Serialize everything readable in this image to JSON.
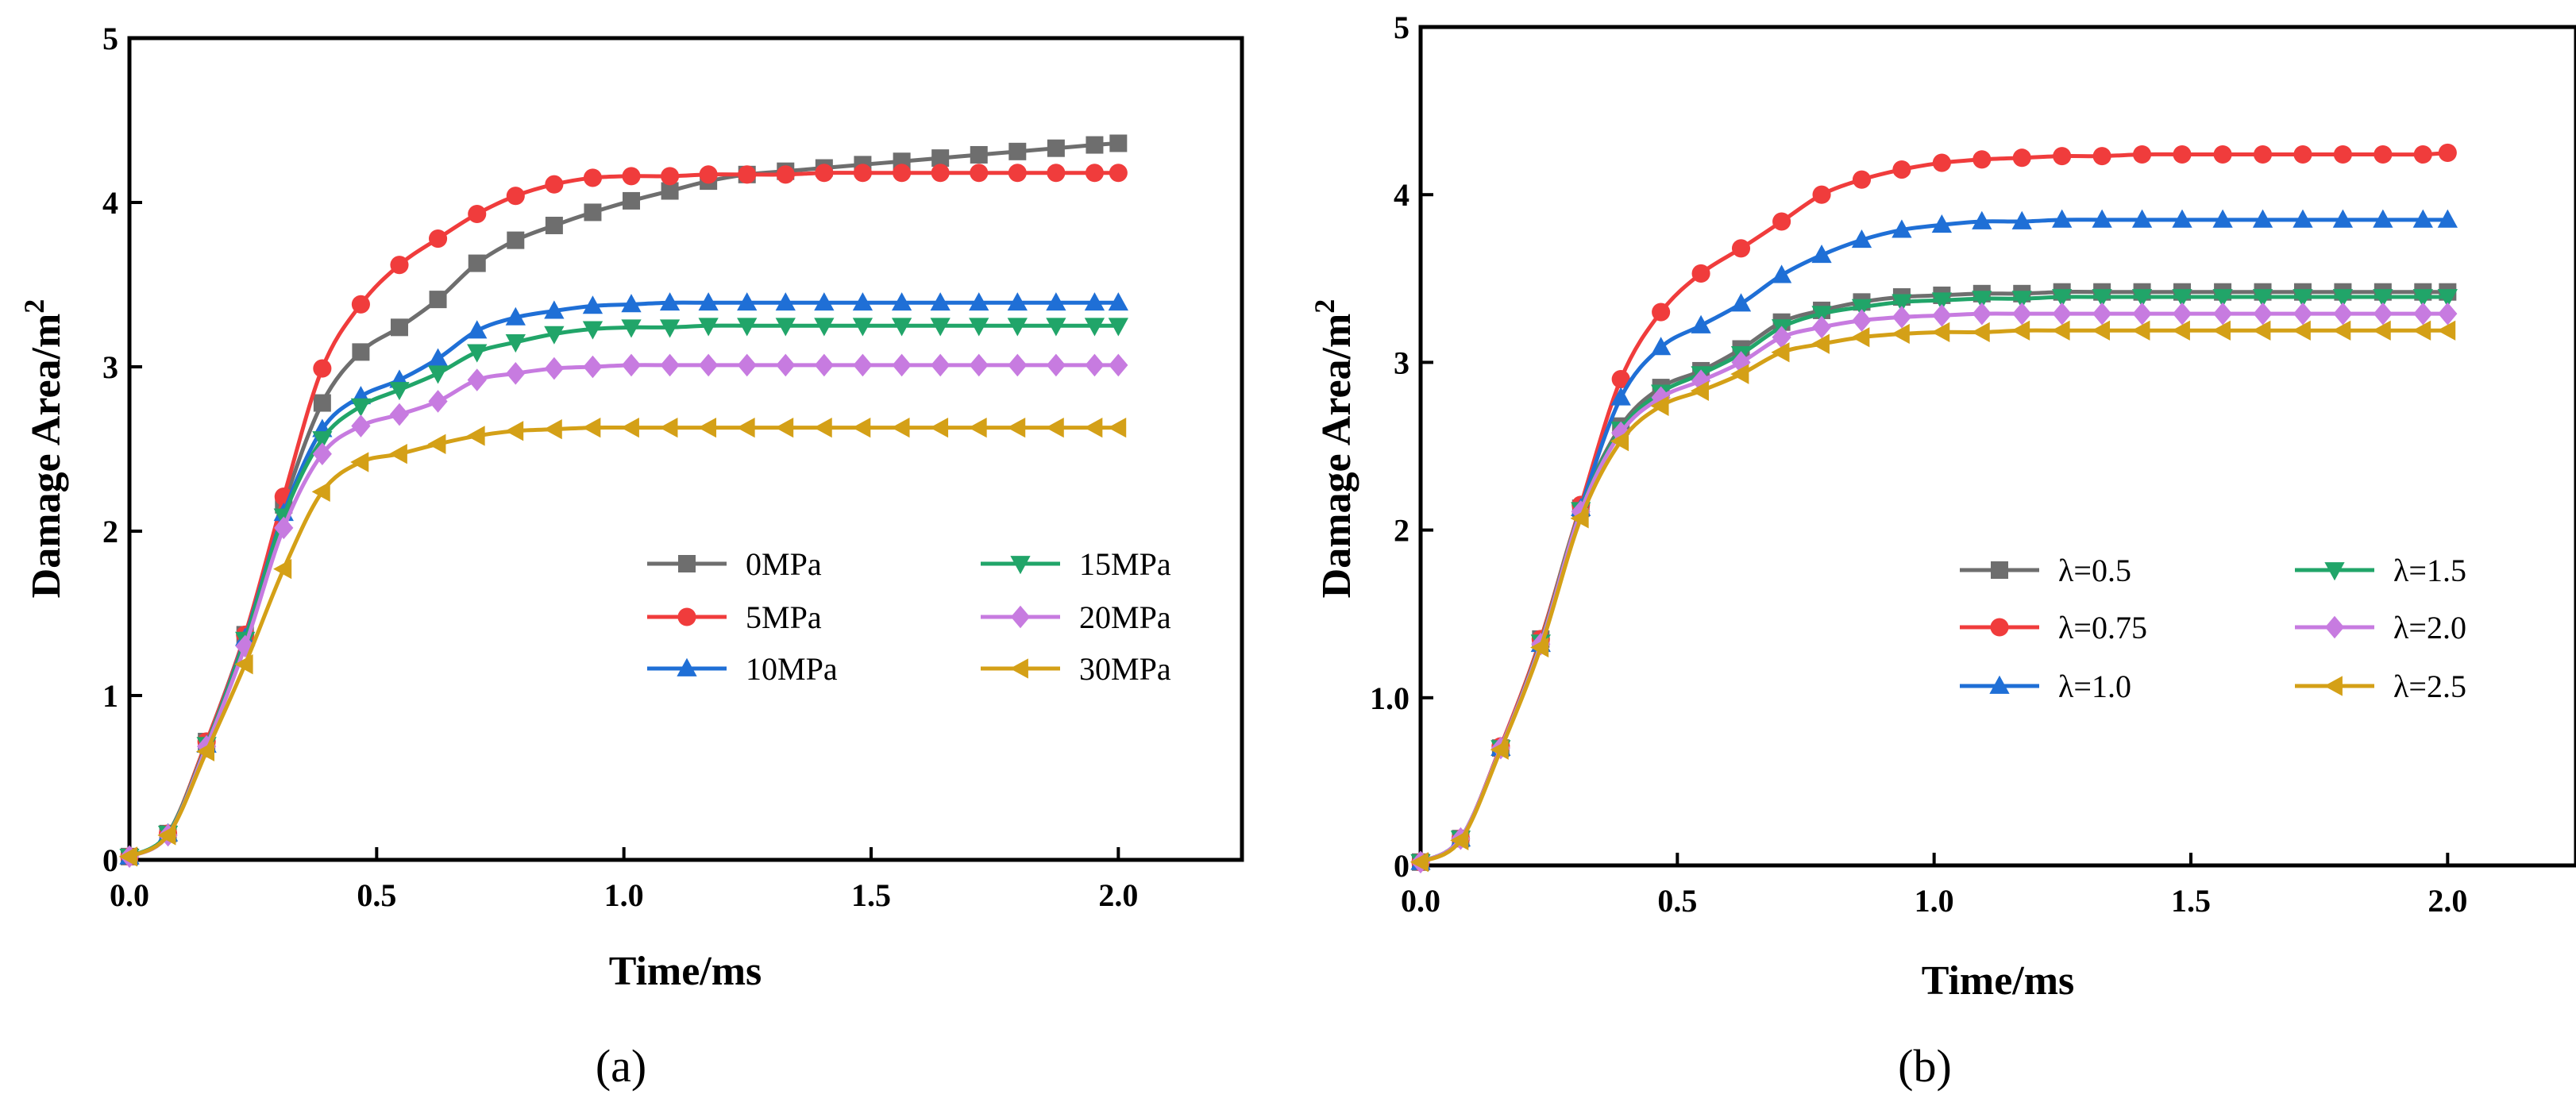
{
  "chart_data": [
    {
      "type": "line",
      "panel_label": "(a)",
      "xlabel": "Time/ms",
      "ylabel_base": "Damage Area/m",
      "ylabel_sup": "2",
      "xlim": [
        0,
        2.25
      ],
      "ylim": [
        0,
        5
      ],
      "xticks": [
        0.0,
        0.5,
        1.0,
        1.5,
        2.0
      ],
      "xtick_labels": [
        "0.0",
        "0.5",
        "1.0",
        "1.5",
        "2.0"
      ],
      "yticks": [
        0,
        1,
        2,
        3,
        4,
        5
      ],
      "ytick_labels": [
        "0",
        "1",
        "2",
        "3",
        "4",
        "5"
      ],
      "legend_position": "center-right",
      "series": [
        {
          "name": "0MPa",
          "color": "#6e6e6e",
          "marker": "square",
          "x": [
            0,
            0.078,
            0.156,
            0.234,
            0.312,
            0.39,
            0.468,
            0.546,
            0.624,
            0.703,
            0.781,
            0.859,
            0.937,
            1.015,
            1.093,
            1.171,
            1.249,
            1.327,
            1.405,
            1.483,
            1.562,
            1.64,
            1.718,
            1.796,
            1.874,
            1.952,
            2.0
          ],
          "y": [
            0.02,
            0.16,
            0.72,
            1.37,
            2.16,
            2.78,
            3.09,
            3.24,
            3.41,
            3.63,
            3.77,
            3.86,
            3.94,
            4.01,
            4.07,
            4.13,
            4.17,
            4.19,
            4.21,
            4.23,
            4.25,
            4.27,
            4.29,
            4.31,
            4.33,
            4.35,
            4.36
          ]
        },
        {
          "name": "5MPa",
          "color": "#f03c3c",
          "marker": "circle",
          "x": [
            0,
            0.078,
            0.156,
            0.234,
            0.312,
            0.39,
            0.468,
            0.546,
            0.624,
            0.703,
            0.781,
            0.859,
            0.937,
            1.015,
            1.093,
            1.171,
            1.249,
            1.327,
            1.405,
            1.483,
            1.562,
            1.64,
            1.718,
            1.796,
            1.874,
            1.952,
            2.0
          ],
          "y": [
            0.02,
            0.16,
            0.72,
            1.37,
            2.21,
            2.99,
            3.38,
            3.62,
            3.78,
            3.93,
            4.04,
            4.11,
            4.15,
            4.16,
            4.16,
            4.17,
            4.17,
            4.17,
            4.18,
            4.18,
            4.18,
            4.18,
            4.18,
            4.18,
            4.18,
            4.18,
            4.18
          ]
        },
        {
          "name": "10MPa",
          "color": "#1f6fd6",
          "marker": "triangle-up",
          "x": [
            0,
            0.078,
            0.156,
            0.234,
            0.312,
            0.39,
            0.468,
            0.546,
            0.624,
            0.703,
            0.781,
            0.859,
            0.937,
            1.015,
            1.093,
            1.171,
            1.249,
            1.327,
            1.405,
            1.483,
            1.562,
            1.64,
            1.718,
            1.796,
            1.874,
            1.952,
            2.0
          ],
          "y": [
            0.02,
            0.16,
            0.7,
            1.35,
            2.11,
            2.62,
            2.82,
            2.92,
            3.05,
            3.22,
            3.3,
            3.34,
            3.37,
            3.38,
            3.39,
            3.39,
            3.39,
            3.39,
            3.39,
            3.39,
            3.39,
            3.39,
            3.39,
            3.39,
            3.39,
            3.39,
            3.39
          ]
        },
        {
          "name": "15MPa",
          "color": "#21a569",
          "marker": "triangle-down",
          "x": [
            0,
            0.078,
            0.156,
            0.234,
            0.312,
            0.39,
            0.468,
            0.546,
            0.624,
            0.703,
            0.781,
            0.859,
            0.937,
            1.015,
            1.093,
            1.171,
            1.249,
            1.327,
            1.405,
            1.483,
            1.562,
            1.64,
            1.718,
            1.796,
            1.874,
            1.952,
            2.0
          ],
          "y": [
            0.02,
            0.16,
            0.7,
            1.34,
            2.09,
            2.56,
            2.76,
            2.86,
            2.96,
            3.09,
            3.15,
            3.2,
            3.23,
            3.24,
            3.24,
            3.25,
            3.25,
            3.25,
            3.25,
            3.25,
            3.25,
            3.25,
            3.25,
            3.25,
            3.25,
            3.25,
            3.25
          ]
        },
        {
          "name": "20MPa",
          "color": "#c77be0",
          "marker": "diamond",
          "x": [
            0,
            0.078,
            0.156,
            0.234,
            0.312,
            0.39,
            0.468,
            0.546,
            0.624,
            0.703,
            0.781,
            0.859,
            0.937,
            1.015,
            1.093,
            1.171,
            1.249,
            1.327,
            1.405,
            1.483,
            1.562,
            1.64,
            1.718,
            1.796,
            1.874,
            1.952,
            2.0
          ],
          "y": [
            0.02,
            0.15,
            0.69,
            1.3,
            2.02,
            2.47,
            2.64,
            2.71,
            2.79,
            2.92,
            2.96,
            2.99,
            3.0,
            3.01,
            3.01,
            3.01,
            3.01,
            3.01,
            3.01,
            3.01,
            3.01,
            3.01,
            3.01,
            3.01,
            3.01,
            3.01,
            3.01
          ]
        },
        {
          "name": "30MPa",
          "color": "#d4a017",
          "marker": "triangle-left",
          "x": [
            0,
            0.078,
            0.156,
            0.234,
            0.312,
            0.39,
            0.468,
            0.546,
            0.624,
            0.703,
            0.781,
            0.859,
            0.937,
            1.015,
            1.093,
            1.171,
            1.249,
            1.327,
            1.405,
            1.483,
            1.562,
            1.64,
            1.718,
            1.796,
            1.874,
            1.952,
            2.0
          ],
          "y": [
            0.02,
            0.15,
            0.66,
            1.19,
            1.77,
            2.24,
            2.42,
            2.47,
            2.53,
            2.58,
            2.61,
            2.62,
            2.63,
            2.63,
            2.63,
            2.63,
            2.63,
            2.63,
            2.63,
            2.63,
            2.63,
            2.63,
            2.63,
            2.63,
            2.63,
            2.63,
            2.63
          ]
        }
      ]
    },
    {
      "type": "line",
      "panel_label": "(b)",
      "xlabel": "Time/ms",
      "ylabel_base": "Damage Area/m",
      "ylabel_sup": "2",
      "xlim": [
        0,
        2.25
      ],
      "ylim": [
        0,
        5
      ],
      "xticks": [
        0.0,
        0.5,
        1.0,
        1.5,
        2.0
      ],
      "xtick_labels": [
        "0.0",
        "0.5",
        "1.0",
        "1.5",
        "2.0"
      ],
      "yticks": [
        0,
        1,
        2,
        3,
        4,
        5
      ],
      "ytick_labels": [
        "0",
        "1.0",
        "2",
        "3",
        "4",
        "5"
      ],
      "legend_position": "center-right",
      "series": [
        {
          "name": "λ=0.5",
          "color": "#6e6e6e",
          "marker": "square",
          "x": [
            0,
            0.078,
            0.156,
            0.234,
            0.312,
            0.39,
            0.468,
            0.546,
            0.624,
            0.703,
            0.781,
            0.859,
            0.937,
            1.015,
            1.093,
            1.171,
            1.249,
            1.327,
            1.405,
            1.483,
            1.562,
            1.64,
            1.718,
            1.796,
            1.874,
            1.952,
            2.0
          ],
          "y": [
            0.02,
            0.16,
            0.7,
            1.35,
            2.13,
            2.62,
            2.85,
            2.95,
            3.08,
            3.24,
            3.31,
            3.36,
            3.39,
            3.4,
            3.41,
            3.41,
            3.42,
            3.42,
            3.42,
            3.42,
            3.42,
            3.42,
            3.42,
            3.42,
            3.42,
            3.42,
            3.42
          ]
        },
        {
          "name": "λ=0.75",
          "color": "#f03c3c",
          "marker": "circle",
          "x": [
            0,
            0.078,
            0.156,
            0.234,
            0.312,
            0.39,
            0.468,
            0.546,
            0.624,
            0.703,
            0.781,
            0.859,
            0.937,
            1.015,
            1.093,
            1.171,
            1.249,
            1.327,
            1.405,
            1.483,
            1.562,
            1.64,
            1.718,
            1.796,
            1.874,
            1.952,
            2.0
          ],
          "y": [
            0.02,
            0.16,
            0.71,
            1.35,
            2.15,
            2.9,
            3.3,
            3.53,
            3.68,
            3.84,
            4.0,
            4.09,
            4.15,
            4.19,
            4.21,
            4.22,
            4.23,
            4.23,
            4.24,
            4.24,
            4.24,
            4.24,
            4.24,
            4.24,
            4.24,
            4.24,
            4.25
          ]
        },
        {
          "name": "λ=1.0",
          "color": "#1f6fd6",
          "marker": "triangle-up",
          "x": [
            0,
            0.078,
            0.156,
            0.234,
            0.312,
            0.39,
            0.468,
            0.546,
            0.624,
            0.703,
            0.781,
            0.859,
            0.937,
            1.015,
            1.093,
            1.171,
            1.249,
            1.327,
            1.405,
            1.483,
            1.562,
            1.64,
            1.718,
            1.796,
            1.874,
            1.952,
            2.0
          ],
          "y": [
            0.02,
            0.16,
            0.7,
            1.32,
            2.13,
            2.79,
            3.09,
            3.22,
            3.35,
            3.52,
            3.64,
            3.73,
            3.79,
            3.82,
            3.84,
            3.84,
            3.85,
            3.85,
            3.85,
            3.85,
            3.85,
            3.85,
            3.85,
            3.85,
            3.85,
            3.85,
            3.85
          ]
        },
        {
          "name": "λ=1.5",
          "color": "#21a569",
          "marker": "triangle-down",
          "x": [
            0,
            0.078,
            0.156,
            0.234,
            0.312,
            0.39,
            0.468,
            0.546,
            0.624,
            0.703,
            0.781,
            0.859,
            0.937,
            1.015,
            1.093,
            1.171,
            1.249,
            1.327,
            1.405,
            1.483,
            1.562,
            1.64,
            1.718,
            1.796,
            1.874,
            1.952,
            2.0
          ],
          "y": [
            0.02,
            0.16,
            0.7,
            1.33,
            2.12,
            2.6,
            2.82,
            2.93,
            3.05,
            3.21,
            3.29,
            3.33,
            3.36,
            3.37,
            3.38,
            3.38,
            3.39,
            3.39,
            3.39,
            3.39,
            3.39,
            3.39,
            3.39,
            3.39,
            3.39,
            3.39,
            3.39
          ]
        },
        {
          "name": "λ=2.0",
          "color": "#c77be0",
          "marker": "diamond",
          "x": [
            0,
            0.078,
            0.156,
            0.234,
            0.312,
            0.39,
            0.468,
            0.546,
            0.624,
            0.703,
            0.781,
            0.859,
            0.937,
            1.015,
            1.093,
            1.171,
            1.249,
            1.327,
            1.405,
            1.483,
            1.562,
            1.64,
            1.718,
            1.796,
            1.874,
            1.952,
            2.0
          ],
          "y": [
            0.02,
            0.16,
            0.7,
            1.32,
            2.11,
            2.58,
            2.79,
            2.89,
            3.0,
            3.15,
            3.21,
            3.25,
            3.27,
            3.28,
            3.29,
            3.29,
            3.29,
            3.29,
            3.29,
            3.29,
            3.29,
            3.29,
            3.29,
            3.29,
            3.29,
            3.29,
            3.29
          ]
        },
        {
          "name": "λ=2.5",
          "color": "#d4a017",
          "marker": "triangle-left",
          "x": [
            0,
            0.078,
            0.156,
            0.234,
            0.312,
            0.39,
            0.468,
            0.546,
            0.624,
            0.703,
            0.781,
            0.859,
            0.937,
            1.015,
            1.093,
            1.171,
            1.249,
            1.327,
            1.405,
            1.483,
            1.562,
            1.64,
            1.718,
            1.796,
            1.874,
            1.952,
            2.0
          ],
          "y": [
            0.02,
            0.15,
            0.69,
            1.3,
            2.07,
            2.53,
            2.74,
            2.83,
            2.93,
            3.06,
            3.11,
            3.15,
            3.17,
            3.18,
            3.18,
            3.19,
            3.19,
            3.19,
            3.19,
            3.19,
            3.19,
            3.19,
            3.19,
            3.19,
            3.19,
            3.19,
            3.19
          ]
        }
      ]
    }
  ]
}
